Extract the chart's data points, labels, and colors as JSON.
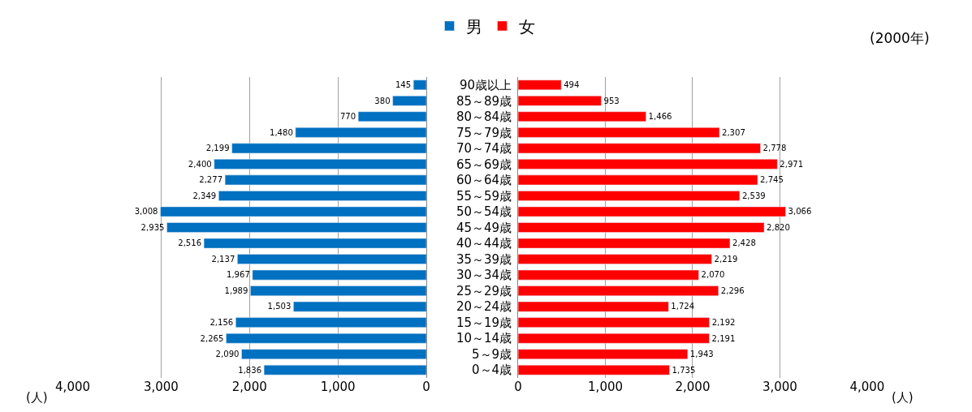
{
  "chart_data": [
    {
      "type": "bar",
      "orientation": "horizontal",
      "categories": [
        "90歳以上",
        "85～89歳",
        "80～84歳",
        "75～79歳",
        "70～74歳",
        "65～69歳",
        "60～64歳",
        "55～59歳",
        "50～54歳",
        "45～49歳",
        "40～44歳",
        "35～39歳",
        "30～34歳",
        "25～29歳",
        "20～24歳",
        "15～19歳",
        "10～14歳",
        "5～9歳",
        "0～4歳"
      ],
      "series": [
        {
          "name": "男",
          "color": "#0070c0",
          "values": [
            145,
            380,
            770,
            1480,
            2199,
            2400,
            2277,
            2349,
            3008,
            2935,
            2516,
            2137,
            1967,
            1989,
            1503,
            2156,
            2265,
            2090,
            1836
          ],
          "value_labels": [
            "145",
            "380",
            "770",
            "1,480",
            "2,199",
            "2,400",
            "2,277",
            "2,349",
            "3,008",
            "2,935",
            "2,516",
            "2,137",
            "1,967",
            "1,989",
            "1,503",
            "2,156",
            "2,265",
            "2,090",
            "1,836"
          ]
        }
      ],
      "xlim": [
        4000,
        0
      ],
      "xticks": [
        {
          "value": 4000,
          "label": "4,000"
        },
        {
          "value": 3000,
          "label": "3,000"
        },
        {
          "value": 2000,
          "label": "2,000"
        },
        {
          "value": 1000,
          "label": "1,000"
        },
        0
      ],
      "xlabel": "(人)",
      "grid": "x",
      "legend": "top",
      "tick_labels": "x"
    },
    {
      "type": "bar",
      "orientation": "horizontal",
      "categories": [
        "90歳以上",
        "85～89歳",
        "80～84歳",
        "75～79歳",
        "70～74歳",
        "65～69歳",
        "60～64歳",
        "55～59歳",
        "50～54歳",
        "45～49歳",
        "40～44歳",
        "35～39歳",
        "30～34歳",
        "25～29歳",
        "20～24歳",
        "15～19歳",
        "10～14歳",
        "5～9歳",
        "0～4歳"
      ],
      "series": [
        {
          "name": "女",
          "color": "#ff0000",
          "values": [
            494,
            953,
            1466,
            2307,
            2778,
            2971,
            2745,
            2539,
            3066,
            2820,
            2428,
            2219,
            2070,
            2296,
            1724,
            2192,
            2191,
            1943,
            1735
          ],
          "value_labels": [
            "494",
            "953",
            "1,466",
            "2,307",
            "2,778",
            "2,971",
            "2,745",
            "2,539",
            "3,066",
            "2,820",
            "2,428",
            "2,219",
            "2,070",
            "2,296",
            "1,724",
            "2,192",
            "2,191",
            "1,943",
            "1,735"
          ]
        }
      ],
      "xlim": [
        0,
        4000
      ],
      "xticks": [
        0,
        {
          "value": 1000,
          "label": "1,000"
        },
        {
          "value": 2000,
          "label": "2,000"
        },
        {
          "value": 3000,
          "label": "3,000"
        },
        {
          "value": 4000,
          "label": "4,000"
        }
      ],
      "xlabel": "(人)",
      "grid": "x",
      "legend": "top",
      "annotations": [
        "(2000年)"
      ]
    }
  ]
}
